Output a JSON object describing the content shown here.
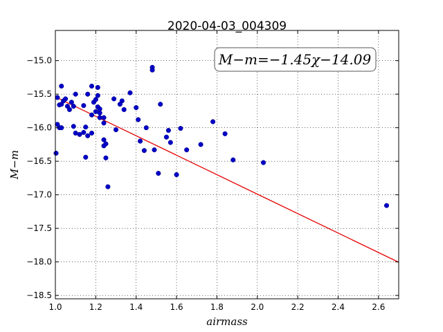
{
  "chart_data": {
    "type": "scatter",
    "title": "2020-04-03_004309",
    "xlabel": "airmass",
    "ylabel": "M−m",
    "xlim": [
      1.0,
      2.7
    ],
    "ylim": [
      -18.55,
      -14.55
    ],
    "x_ticks": [
      "1.0",
      "1.2",
      "1.4",
      "1.6",
      "1.8",
      "2.0",
      "2.2",
      "2.4",
      "2.6"
    ],
    "x_tick_values": [
      1.0,
      1.2,
      1.4,
      1.6,
      1.8,
      2.0,
      2.2,
      2.4,
      2.6
    ],
    "y_ticks": [
      "−15.0",
      "−15.5",
      "−16.0",
      "−16.5",
      "−17.0",
      "−17.5",
      "−18.0",
      "−18.5"
    ],
    "y_tick_values": [
      -15.0,
      -15.5,
      -16.0,
      -16.5,
      -17.0,
      -17.5,
      -18.0,
      -18.5
    ],
    "grid": true,
    "annotation": "M−m=−1.45χ−14.09",
    "fit": {
      "slope": -1.45,
      "intercept": -14.09,
      "color": "#e60000"
    },
    "point_color": "#0000c8",
    "points": [
      [
        1.0,
        -16.38
      ],
      [
        1.01,
        -15.95
      ],
      [
        1.01,
        -15.55
      ],
      [
        1.02,
        -15.66
      ],
      [
        1.02,
        -16.0
      ],
      [
        1.03,
        -15.38
      ],
      [
        1.03,
        -15.65
      ],
      [
        1.03,
        -16.0
      ],
      [
        1.04,
        -15.6
      ],
      [
        1.05,
        -15.57
      ],
      [
        1.06,
        -15.68
      ],
      [
        1.07,
        -15.73
      ],
      [
        1.08,
        -15.62
      ],
      [
        1.09,
        -15.68
      ],
      [
        1.09,
        -15.98
      ],
      [
        1.1,
        -15.5
      ],
      [
        1.1,
        -16.08
      ],
      [
        1.12,
        -16.1
      ],
      [
        1.14,
        -15.67
      ],
      [
        1.14,
        -16.07
      ],
      [
        1.15,
        -15.99
      ],
      [
        1.15,
        -16.44
      ],
      [
        1.16,
        -15.5
      ],
      [
        1.16,
        -16.12
      ],
      [
        1.18,
        -15.38
      ],
      [
        1.18,
        -15.81
      ],
      [
        1.18,
        -16.08
      ],
      [
        1.19,
        -15.62
      ],
      [
        1.2,
        -15.58
      ],
      [
        1.2,
        -15.76
      ],
      [
        1.21,
        -15.4
      ],
      [
        1.21,
        -15.52
      ],
      [
        1.21,
        -15.69
      ],
      [
        1.22,
        -15.72
      ],
      [
        1.22,
        -15.78
      ],
      [
        1.22,
        -15.85
      ],
      [
        1.24,
        -15.85
      ],
      [
        1.24,
        -15.93
      ],
      [
        1.24,
        -16.18
      ],
      [
        1.24,
        -16.27
      ],
      [
        1.25,
        -16.24
      ],
      [
        1.25,
        -16.45
      ],
      [
        1.26,
        -16.88
      ],
      [
        1.29,
        -15.57
      ],
      [
        1.3,
        -16.03
      ],
      [
        1.32,
        -15.65
      ],
      [
        1.33,
        -15.6
      ],
      [
        1.34,
        -15.73
      ],
      [
        1.37,
        -15.48
      ],
      [
        1.4,
        -15.7
      ],
      [
        1.41,
        -15.88
      ],
      [
        1.42,
        -16.2
      ],
      [
        1.44,
        -16.34
      ],
      [
        1.45,
        -16.0
      ],
      [
        1.48,
        -15.1
      ],
      [
        1.48,
        -15.14
      ],
      [
        1.49,
        -16.33
      ],
      [
        1.51,
        -16.68
      ],
      [
        1.52,
        -15.65
      ],
      [
        1.55,
        -16.14
      ],
      [
        1.56,
        -16.04
      ],
      [
        1.57,
        -16.22
      ],
      [
        1.6,
        -16.7
      ],
      [
        1.62,
        -16.01
      ],
      [
        1.65,
        -16.33
      ],
      [
        1.72,
        -16.25
      ],
      [
        1.78,
        -15.91
      ],
      [
        1.84,
        -16.09
      ],
      [
        1.88,
        -16.48
      ],
      [
        2.03,
        -16.52
      ],
      [
        2.64,
        -17.16
      ]
    ]
  }
}
